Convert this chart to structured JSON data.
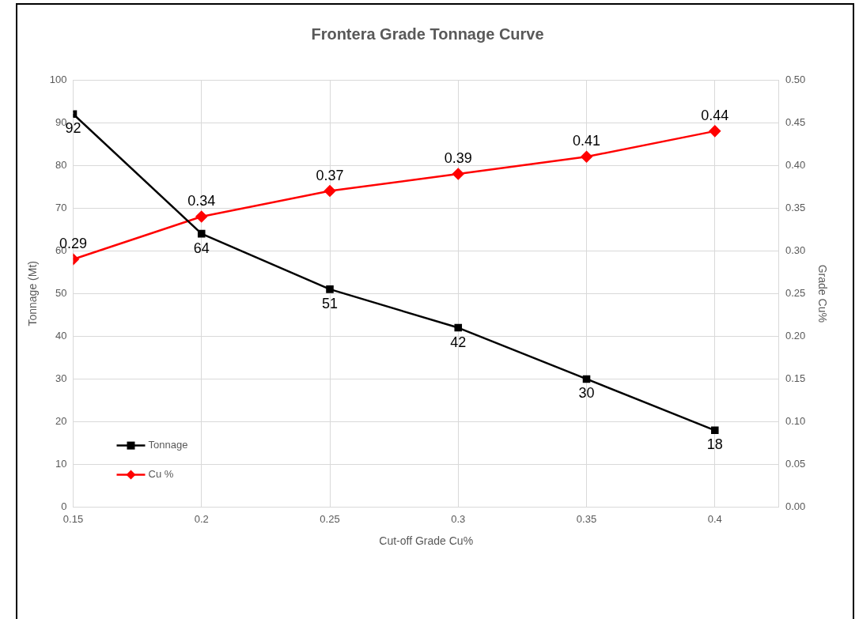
{
  "chart_data": {
    "type": "line",
    "title": "Frontera Grade Tonnage Curve",
    "xlabel": "Cut-off Grade Cu%",
    "ylabel": "Tonnage (Mt)",
    "y2label": "Grade Cu%",
    "x": [
      0.15,
      0.2,
      0.25,
      0.3,
      0.35,
      0.4
    ],
    "series": [
      {
        "name": "Tonnage",
        "color": "#000000",
        "marker": "square",
        "values": [
          92,
          64,
          51,
          42,
          30,
          18
        ]
      },
      {
        "name": "Cu %",
        "color": "#ff0000",
        "marker": "diamond",
        "axis": "y2",
        "values": [
          0.29,
          0.34,
          0.37,
          0.39,
          0.41,
          0.44
        ]
      }
    ],
    "xlim": [
      0.15,
      0.425
    ],
    "xticks": [
      0.15,
      0.2,
      0.25,
      0.3,
      0.35,
      0.4
    ],
    "ylim": [
      0,
      100
    ],
    "yticks": [
      0,
      10,
      20,
      30,
      40,
      50,
      60,
      70,
      80,
      90,
      100
    ],
    "y2lim": [
      0,
      0.5
    ],
    "y2ticks": [
      {
        "value": 0,
        "label": "0.00"
      },
      {
        "value": 0.05,
        "label": "0.05"
      },
      {
        "value": 0.1,
        "label": "0.10"
      },
      {
        "value": 0.15,
        "label": "0.15"
      },
      {
        "value": 0.2,
        "label": "0.20"
      },
      {
        "value": 0.25,
        "label": "0.25"
      },
      {
        "value": 0.3,
        "label": "0.30"
      },
      {
        "value": 0.35,
        "label": "0.35"
      },
      {
        "value": 0.4,
        "label": "0.40"
      },
      {
        "value": 0.45,
        "label": "0.45"
      },
      {
        "value": 0.5,
        "label": "0.50"
      }
    ],
    "grid": true,
    "legend": "bottom left",
    "data_labels": true,
    "line_style": "solid"
  }
}
